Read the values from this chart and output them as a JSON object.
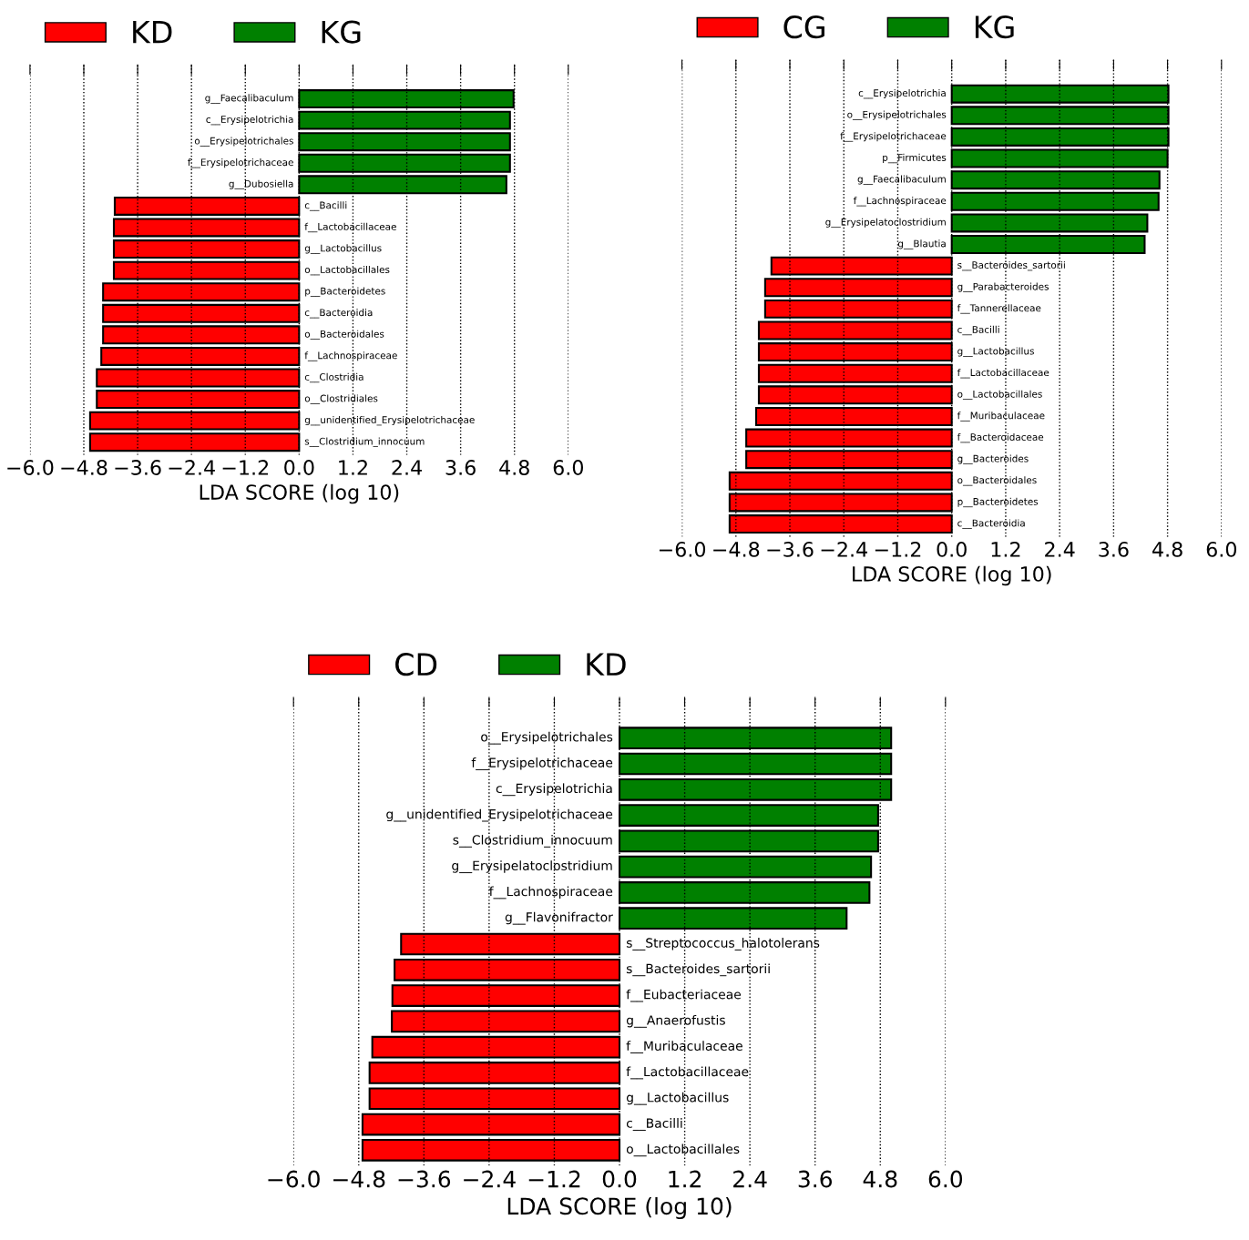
{
  "chart_data": [
    {
      "type": "bar",
      "orientation": "horizontal",
      "xlabel": "LDA SCORE (log 10)",
      "legend": "top",
      "grid": "x",
      "tick_labels": "x",
      "categories": [
        "g__Faecalibaculum",
        "c__Erysipelotrichia",
        "o__Erysipelotrichales",
        "f__Erysipelotrichaceae",
        "g__Dubosiella",
        "c__Bacilli",
        "f__Lactobacillaceae",
        "g__Lactobacillus",
        "o__Lactobacillales",
        "p__Bacteroidetes",
        "c__Bacteroidia",
        "o__Bacteroidales",
        "f__Lachnospiraceae",
        "c__Clostridia",
        "o__Clostridiales",
        "g__unidentified_Erysipelotrichaceae",
        "s__Clostridium_innocuum"
      ],
      "series": [
        {
          "name": "KD",
          "color": "#ff0000",
          "values": [
            null,
            null,
            null,
            null,
            null,
            -4.11,
            -4.13,
            -4.13,
            -4.13,
            -4.37,
            -4.37,
            -4.37,
            -4.41,
            -4.51,
            -4.51,
            -4.66,
            -4.66
          ]
        },
        {
          "name": "KG",
          "color": "#008000",
          "values": [
            4.78,
            4.7,
            4.7,
            4.7,
            4.62,
            null,
            null,
            null,
            null,
            null,
            null,
            null,
            null,
            null,
            null,
            null,
            null
          ]
        }
      ],
      "xlim": [
        -6.0,
        6.0
      ],
      "xticks": [
        {
          "value": -6.0,
          "label": "−6.0"
        },
        {
          "value": -4.8,
          "label": "−4.8"
        },
        {
          "value": -3.6,
          "label": "−3.6"
        },
        {
          "value": -2.4,
          "label": "−2.4"
        },
        {
          "value": -1.2,
          "label": "−1.2"
        },
        {
          "value": 0.0,
          "label": "0.0"
        },
        {
          "value": 1.2,
          "label": "1.2"
        },
        {
          "value": 2.4,
          "label": "2.4"
        },
        {
          "value": 3.6,
          "label": "3.6"
        },
        {
          "value": 4.8,
          "label": "4.8"
        },
        {
          "value": 6.0,
          "label": "6.0"
        }
      ]
    },
    {
      "type": "bar",
      "orientation": "horizontal",
      "xlabel": "LDA SCORE (log 10)",
      "legend": "top",
      "grid": "x",
      "tick_labels": "x",
      "categories": [
        "c__Erysipelotrichia",
        "o__Erysipelotrichales",
        "f__Erysipelotrichaceae",
        "p__Firmicutes",
        "g__Faecalibaculum",
        "f__Lachnospiraceae",
        "g__Erysipelatoclostridium",
        "g__Blautia",
        "s__Bacteroides_sartorii",
        "g__Parabacteroides",
        "f__Tannerellaceae",
        "c__Bacilli",
        "g__Lactobacillus",
        "f__Lactobacillaceae",
        "o__Lactobacillales",
        "f__Muribaculaceae",
        "f__Bacteroidaceae",
        "g__Bacteroides",
        "o__Bacteroidales",
        "p__Bacteroidetes",
        "c__Bacteroidia"
      ],
      "series": [
        {
          "name": "CG",
          "color": "#ff0000",
          "values": [
            null,
            null,
            null,
            null,
            null,
            null,
            null,
            null,
            -4.01,
            -4.15,
            -4.15,
            -4.29,
            -4.29,
            -4.29,
            -4.29,
            -4.35,
            -4.57,
            -4.57,
            -4.94,
            -4.94,
            -4.94
          ]
        },
        {
          "name": "KG",
          "color": "#008000",
          "values": [
            4.82,
            4.82,
            4.82,
            4.8,
            4.62,
            4.6,
            4.35,
            4.29,
            null,
            null,
            null,
            null,
            null,
            null,
            null,
            null,
            null,
            null,
            null,
            null,
            null
          ]
        }
      ],
      "xlim": [
        -6.0,
        6.0
      ],
      "xticks": [
        {
          "value": -6.0,
          "label": "−6.0"
        },
        {
          "value": -4.8,
          "label": "−4.8"
        },
        {
          "value": -3.6,
          "label": "−3.6"
        },
        {
          "value": -2.4,
          "label": "−2.4"
        },
        {
          "value": -1.2,
          "label": "−1.2"
        },
        {
          "value": 0.0,
          "label": "0.0"
        },
        {
          "value": 1.2,
          "label": "1.2"
        },
        {
          "value": 2.4,
          "label": "2.4"
        },
        {
          "value": 3.6,
          "label": "3.6"
        },
        {
          "value": 4.8,
          "label": "4.8"
        },
        {
          "value": 6.0,
          "label": "6.0"
        }
      ]
    },
    {
      "type": "bar",
      "orientation": "horizontal",
      "xlabel": "LDA SCORE (log 10)",
      "legend": "top",
      "grid": "x",
      "tick_labels": "x",
      "categories": [
        "o__Erysipelotrichales",
        "f__Erysipelotrichaceae",
        "c__Erysipelotrichia",
        "g__unidentified_Erysipelotrichaceae",
        "s__Clostridium_innocuum",
        "g__Erysipelatoclostridium",
        "f__Lachnospiraceae",
        "g__Flavonifractor",
        "s__Streptococcus_halotolerans",
        "s__Bacteroides_sartorii",
        "f__Eubacteriaceae",
        "g__Anaerofustis",
        "f__Muribaculaceae",
        "f__Lactobacillaceae",
        "g__Lactobacillus",
        "c__Bacilli",
        "o__Lactobacillales"
      ],
      "series": [
        {
          "name": "CD",
          "color": "#ff0000",
          "values": [
            null,
            null,
            null,
            null,
            null,
            null,
            null,
            null,
            -4.02,
            -4.14,
            -4.18,
            -4.19,
            -4.55,
            -4.6,
            -4.6,
            -4.73,
            -4.73
          ]
        },
        {
          "name": "KD",
          "color": "#008000",
          "values": [
            5.0,
            5.0,
            5.0,
            4.76,
            4.76,
            4.63,
            4.6,
            4.18,
            null,
            null,
            null,
            null,
            null,
            null,
            null,
            null,
            null
          ]
        }
      ],
      "xlim": [
        -6.0,
        6.0
      ],
      "xticks": [
        {
          "value": -6.0,
          "label": "−6.0"
        },
        {
          "value": -4.8,
          "label": "−4.8"
        },
        {
          "value": -3.6,
          "label": "−3.6"
        },
        {
          "value": -2.4,
          "label": "−2.4"
        },
        {
          "value": -1.2,
          "label": "−1.2"
        },
        {
          "value": 0.0,
          "label": "0.0"
        },
        {
          "value": 1.2,
          "label": "1.2"
        },
        {
          "value": 2.4,
          "label": "2.4"
        },
        {
          "value": 3.6,
          "label": "3.6"
        },
        {
          "value": 4.8,
          "label": "4.8"
        },
        {
          "value": 6.0,
          "label": "6.0"
        }
      ]
    }
  ]
}
